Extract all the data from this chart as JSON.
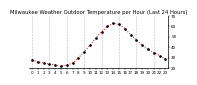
{
  "title": "Milwaukee Weather Outdoor Temperature per Hour (Last 24 Hours)",
  "hours": [
    0,
    1,
    2,
    3,
    4,
    5,
    6,
    7,
    8,
    9,
    10,
    11,
    12,
    13,
    14,
    15,
    16,
    17,
    18,
    19,
    20,
    21,
    22,
    23
  ],
  "temps": [
    28,
    26,
    25,
    24,
    23,
    22,
    23,
    25,
    30,
    36,
    42,
    49,
    55,
    60,
    63,
    62,
    58,
    52,
    47,
    42,
    38,
    35,
    32,
    29
  ],
  "line_color": "#ff0000",
  "marker_color": "#000000",
  "bg_color": "#ffffff",
  "grid_color": "#bbbbbb",
  "grid_ticks": [
    0,
    3,
    6,
    9,
    12,
    15,
    18,
    21
  ],
  "ylim": [
    20,
    70
  ],
  "yticks": [
    20,
    30,
    40,
    50,
    60,
    70
  ],
  "xlim": [
    -0.5,
    23.5
  ],
  "title_fontsize": 3.8,
  "tick_fontsize": 3.0,
  "line_width": 0.7,
  "marker_size": 0.9
}
